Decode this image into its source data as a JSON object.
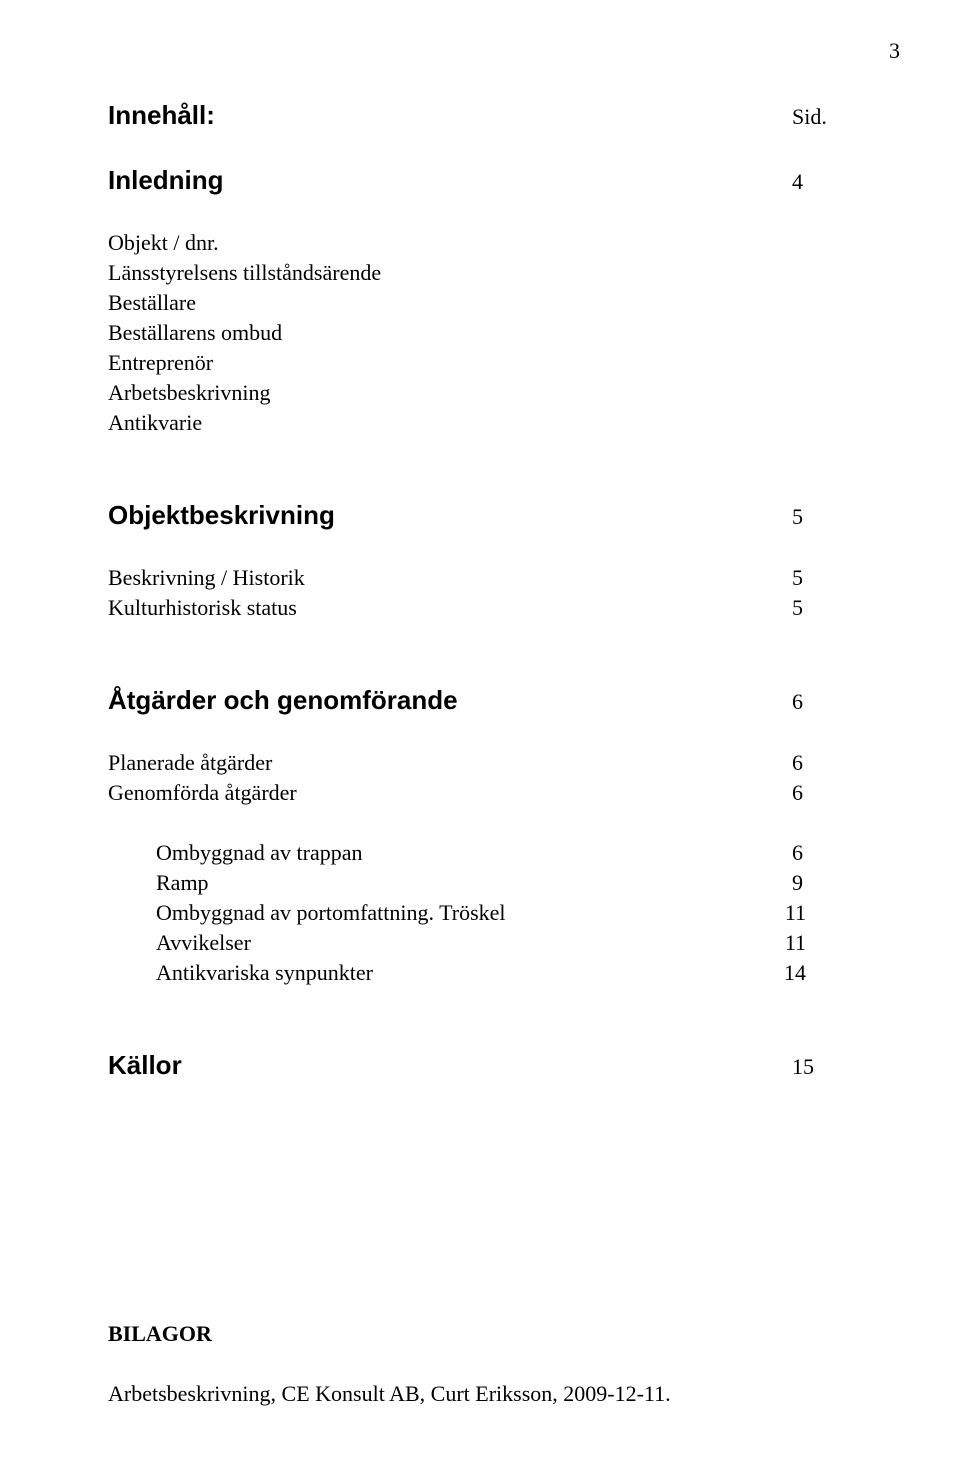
{
  "page_number": "3",
  "heading_label": "Innehåll:",
  "sid_label": "Sid.",
  "sections": {
    "inledning": {
      "title": "Inledning",
      "page": "4"
    },
    "inledning_items": [
      "Objekt / dnr.",
      "Länsstyrelsens tillståndsärende",
      "Beställare",
      "Beställarens ombud",
      "Entreprenör",
      "Arbetsbeskrivning",
      "Antikvarie"
    ],
    "objektbeskrivning": {
      "title": "Objektbeskrivning",
      "page": "5"
    },
    "objekt_items": [
      {
        "label": "Beskrivning / Historik",
        "page": "5"
      },
      {
        "label": "Kulturhistorisk status",
        "page": "5"
      }
    ],
    "atgarder": {
      "title": "Åtgärder och genomförande",
      "page": "6"
    },
    "atgarder_items": [
      {
        "label": "Planerade åtgärder",
        "page": "6"
      },
      {
        "label": "Genomförda åtgärder",
        "page": "6"
      }
    ],
    "atgarder_sub": [
      {
        "label": "Ombyggnad av trappan",
        "page": "6"
      },
      {
        "label": "Ramp",
        "page": "9"
      },
      {
        "label": "Ombyggnad av portomfattning. Tröskel",
        "page": "11"
      },
      {
        "label": "Avvikelser",
        "page": "11"
      },
      {
        "label": "Antikvariska synpunkter",
        "page": "14"
      }
    ],
    "kallor": {
      "title": "Källor",
      "page": "15"
    },
    "bilagor_title": "BILAGOR",
    "bilagor_text": "Arbetsbeskrivning, CE Konsult AB, Curt Eriksson, 2009-12-11."
  }
}
